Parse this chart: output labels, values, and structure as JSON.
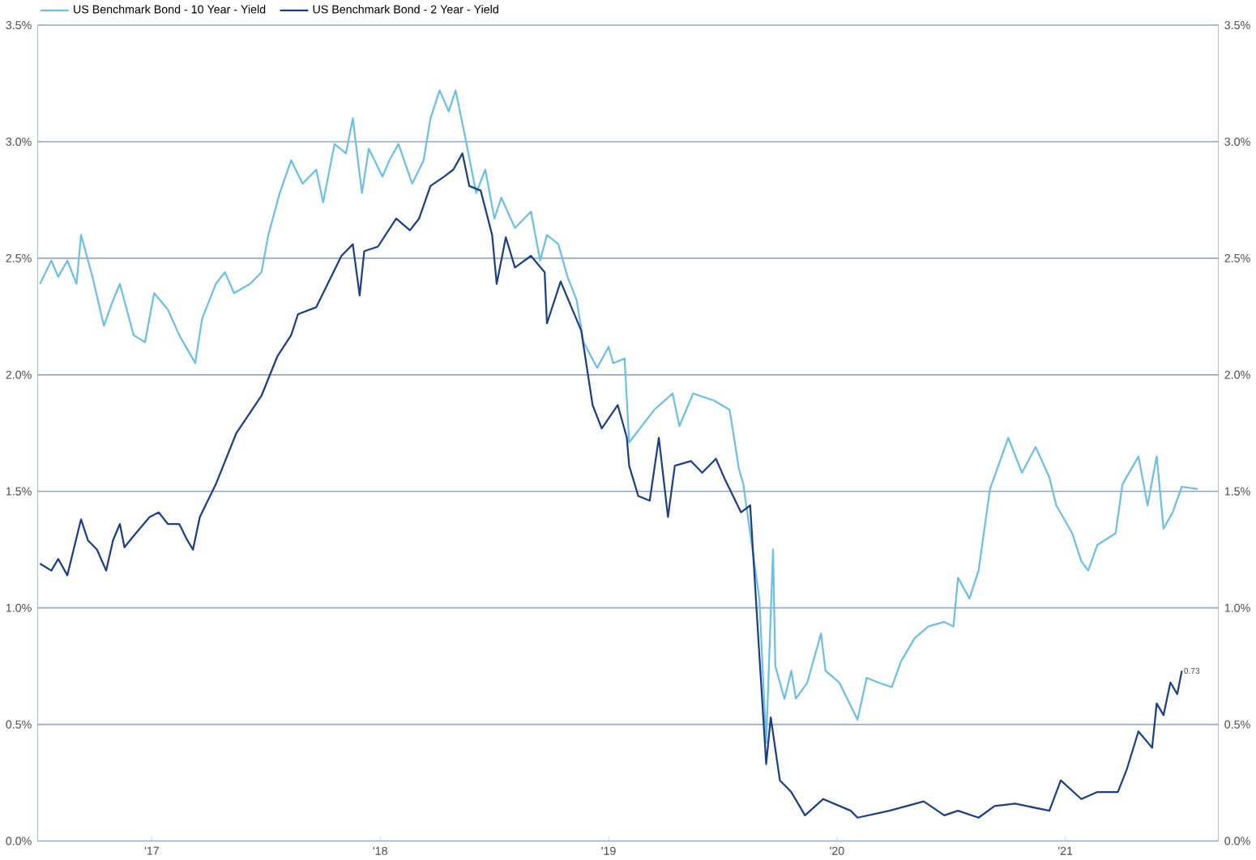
{
  "chart_data": {
    "type": "line",
    "xlim": [
      2016.5,
      2021.67
    ],
    "xticks": [
      {
        "value": 2017,
        "label": "'17"
      },
      {
        "value": 2018,
        "label": "'18"
      },
      {
        "value": 2019,
        "label": "'19"
      },
      {
        "value": 2020,
        "label": "'20"
      },
      {
        "value": 2021,
        "label": "'21"
      }
    ],
    "ylim": [
      0,
      3.5
    ],
    "yticks": [
      {
        "value": 0,
        "label": "0.0%"
      },
      {
        "value": 0.5,
        "label": "0.5%"
      },
      {
        "value": 1,
        "label": "1.0%"
      },
      {
        "value": 1.5,
        "label": "1.5%"
      },
      {
        "value": 2,
        "label": "2.0%"
      },
      {
        "value": 2.5,
        "label": "2.5%"
      },
      {
        "value": 3,
        "label": "3.0%"
      },
      {
        "value": 3.5,
        "label": "3.5%"
      }
    ],
    "y2lim": [
      0,
      3.5
    ],
    "y2ticks": [
      {
        "value": 0,
        "label": "0.0%"
      },
      {
        "value": 0.5,
        "label": "0.5%"
      },
      {
        "value": 1,
        "label": "1.0%"
      },
      {
        "value": 1.5,
        "label": "1.5%"
      },
      {
        "value": 2,
        "label": "2.0%"
      },
      {
        "value": 2.5,
        "label": "2.5%"
      },
      {
        "value": 3,
        "label": "3.0%"
      },
      {
        "value": 3.5,
        "label": "3.5%"
      }
    ],
    "grid": "y",
    "legend": "top left",
    "marker": "none",
    "line_style": "solid",
    "annotations": [
      {
        "text": "0.73",
        "x": 2021.51,
        "y": 0.73
      }
    ],
    "series": [
      {
        "name": "US Benchmark Bond - 10 Year - Yield",
        "color": "#6cc0e5",
        "x": [
          2016.51,
          2016.56,
          2016.59,
          2016.63,
          2016.67,
          2016.69,
          2016.74,
          2016.79,
          2016.83,
          2016.86,
          2016.92,
          2016.97,
          2017.01,
          2017.07,
          2017.12,
          2017.19,
          2017.22,
          2017.28,
          2017.32,
          2017.36,
          2017.43,
          2017.48,
          2017.51,
          2017.56,
          2017.61,
          2017.66,
          2017.72,
          2017.75,
          2017.8,
          2017.85,
          2017.88,
          2017.92,
          2017.95,
          2018.01,
          2018.04,
          2018.08,
          2018.14,
          2018.19,
          2018.22,
          2018.26,
          2018.3,
          2018.33,
          2018.37,
          2018.42,
          2018.46,
          2018.5,
          2018.53,
          2018.59,
          2018.66,
          2018.7,
          2018.73,
          2018.78,
          2018.82,
          2018.86,
          2018.89,
          2018.95,
          2019.0,
          2019.02,
          2019.07,
          2019.09,
          2019.2,
          2019.28,
          2019.31,
          2019.37,
          2019.46,
          2019.53,
          2019.57,
          2019.59,
          2019.66,
          2019.69,
          2019.72,
          2019.73,
          2019.77,
          2019.8,
          2019.82,
          2019.87,
          2019.93,
          2019.95,
          2020.01,
          2020.09,
          2020.13,
          2020.18,
          2020.24,
          2020.28,
          2020.34,
          2020.4,
          2020.47,
          2020.51,
          2020.53,
          2020.58,
          2020.62,
          2020.67,
          2020.75,
          2020.81,
          2020.87,
          2020.93,
          2020.96,
          2021.03,
          2021.07,
          2021.1,
          2021.14,
          2021.22,
          2021.25,
          2021.32,
          2021.36,
          2021.4,
          2021.43,
          2021.47,
          2021.51,
          2021.58
        ],
        "values": [
          2.39,
          2.49,
          2.42,
          2.49,
          2.39,
          2.6,
          2.42,
          2.21,
          2.32,
          2.39,
          2.17,
          2.14,
          2.35,
          2.28,
          2.17,
          2.05,
          2.24,
          2.39,
          2.44,
          2.35,
          2.39,
          2.44,
          2.6,
          2.78,
          2.92,
          2.82,
          2.88,
          2.74,
          2.99,
          2.95,
          3.1,
          2.78,
          2.97,
          2.85,
          2.92,
          2.99,
          2.82,
          2.92,
          3.1,
          3.22,
          3.13,
          3.22,
          3.03,
          2.78,
          2.88,
          2.67,
          2.76,
          2.63,
          2.7,
          2.49,
          2.6,
          2.56,
          2.42,
          2.32,
          2.14,
          2.03,
          2.12,
          2.05,
          2.07,
          1.71,
          1.85,
          1.92,
          1.78,
          1.92,
          1.89,
          1.85,
          1.6,
          1.53,
          1.04,
          0.42,
          1.25,
          0.75,
          0.61,
          0.73,
          0.61,
          0.68,
          0.89,
          0.73,
          0.68,
          0.52,
          0.7,
          0.68,
          0.66,
          0.77,
          0.87,
          0.92,
          0.94,
          0.92,
          1.13,
          1.04,
          1.16,
          1.51,
          1.73,
          1.58,
          1.69,
          1.56,
          1.44,
          1.32,
          1.2,
          1.16,
          1.27,
          1.32,
          1.53,
          1.65,
          1.44,
          1.65,
          1.34,
          1.41,
          1.52,
          1.51
        ]
      },
      {
        "name": "US Benchmark Bond - 2 Year - Yield",
        "color": "#1c3f85",
        "x": [
          2016.51,
          2016.56,
          2016.59,
          2016.63,
          2016.67,
          2016.69,
          2016.72,
          2016.76,
          2016.8,
          2016.83,
          2016.86,
          2016.88,
          2016.93,
          2016.99,
          2017.03,
          2017.07,
          2017.12,
          2017.15,
          2017.18,
          2017.21,
          2017.28,
          2017.37,
          2017.48,
          2017.55,
          2017.61,
          2017.64,
          2017.72,
          2017.77,
          2017.83,
          2017.88,
          2017.91,
          2017.93,
          2017.99,
          2018.07,
          2018.13,
          2018.17,
          2018.22,
          2018.28,
          2018.32,
          2018.36,
          2018.39,
          2018.44,
          2018.49,
          2018.51,
          2018.55,
          2018.59,
          2018.66,
          2018.72,
          2018.73,
          2018.79,
          2018.88,
          2018.93,
          2018.97,
          2019.04,
          2019.08,
          2019.09,
          2019.13,
          2019.18,
          2019.22,
          2019.26,
          2019.29,
          2019.36,
          2019.41,
          2019.47,
          2019.51,
          2019.58,
          2019.62,
          2019.66,
          2019.69,
          2019.71,
          2019.75,
          2019.8,
          2019.86,
          2019.94,
          2020.06,
          2020.09,
          2020.23,
          2020.38,
          2020.47,
          2020.53,
          2020.62,
          2020.69,
          2020.78,
          2020.93,
          2020.98,
          2021.07,
          2021.14,
          2021.23,
          2021.27,
          2021.32,
          2021.38,
          2021.4,
          2021.43,
          2021.46,
          2021.49,
          2021.51
        ],
        "values": [
          1.19,
          1.16,
          1.21,
          1.14,
          1.3,
          1.38,
          1.29,
          1.25,
          1.16,
          1.29,
          1.36,
          1.26,
          1.32,
          1.39,
          1.41,
          1.36,
          1.36,
          1.3,
          1.25,
          1.39,
          1.53,
          1.75,
          1.91,
          2.08,
          2.17,
          2.26,
          2.29,
          2.39,
          2.51,
          2.56,
          2.34,
          2.53,
          2.55,
          2.67,
          2.62,
          2.67,
          2.81,
          2.85,
          2.88,
          2.95,
          2.81,
          2.79,
          2.6,
          2.39,
          2.59,
          2.46,
          2.51,
          2.44,
          2.22,
          2.4,
          2.19,
          1.87,
          1.77,
          1.87,
          1.73,
          1.61,
          1.48,
          1.46,
          1.73,
          1.39,
          1.61,
          1.63,
          1.58,
          1.64,
          1.55,
          1.41,
          1.44,
          0.8,
          0.33,
          0.53,
          0.26,
          0.21,
          0.11,
          0.18,
          0.13,
          0.1,
          0.13,
          0.17,
          0.11,
          0.13,
          0.1,
          0.15,
          0.16,
          0.13,
          0.26,
          0.18,
          0.21,
          0.21,
          0.31,
          0.47,
          0.4,
          0.59,
          0.54,
          0.68,
          0.63,
          0.73
        ]
      }
    ]
  }
}
